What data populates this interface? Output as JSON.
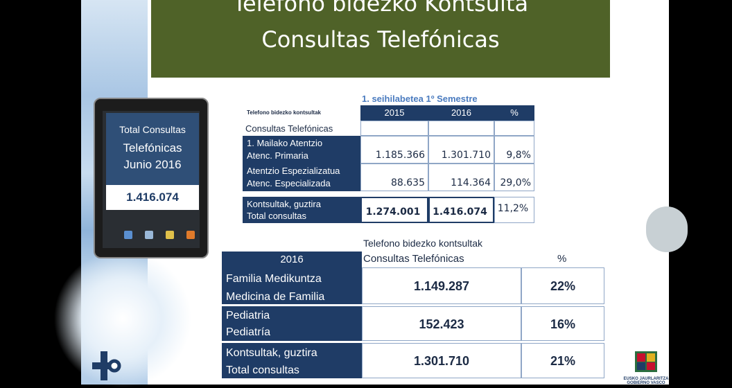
{
  "title": {
    "line1": "Telefono bidezko Kontsulta",
    "line2": "Consultas Telefónicas"
  },
  "tablet": {
    "line1": "Total Consultas",
    "line2": "Telefónicas",
    "line3": "Junio 2016",
    "value": "1.416.074"
  },
  "table1": {
    "header": "1. seihilabetea 1º Semestre",
    "row_label": "Telefono bidezko kontsultak",
    "sub_label": "Consultas Telefónicas",
    "cols": [
      "2015",
      "2016",
      "%"
    ],
    "rows": [
      {
        "label1": "1. Mailako Atentzio",
        "label2": "Atenc. Primaria",
        "v2015": "1.185.366",
        "v2016": "1.301.710",
        "pct": "9,8%"
      },
      {
        "label1": "Atentzio Espezializatua",
        "label2": "Atenc. Especializada",
        "v2015": "88.635",
        "v2016": "114.364",
        "pct": "29,0%"
      },
      {
        "label1": "Kontsultak, guztira",
        "label2": "Total consultas",
        "v2015": "1.274.001",
        "v2016": "1.416.074",
        "pct": "11,2%"
      }
    ]
  },
  "table2": {
    "top_label": "Telefono bidezko kontsultak",
    "year": "2016",
    "col_label": "Consultas Telefónicas",
    "pct_label": "%",
    "rows": [
      {
        "label1": "Familia Medikuntza",
        "label2": "Medicina de Familia",
        "value": "1.149.287",
        "pct": "22%"
      },
      {
        "label1": "Pediatria",
        "label2": "Pediatría",
        "value": "152.423",
        "pct": "16%"
      },
      {
        "label1": "Kontsultak, guztira",
        "label2": "Total consultas",
        "value": "1.301.710",
        "pct": "21%"
      }
    ]
  },
  "logo_right": {
    "line1": "EUSKO JAURLARITZA",
    "line2": "GOBIERNO VASCO"
  },
  "colors": {
    "title_bg": "#4f6228",
    "navy": "#1f3c66",
    "accent_blue": "#4a7bbf"
  }
}
